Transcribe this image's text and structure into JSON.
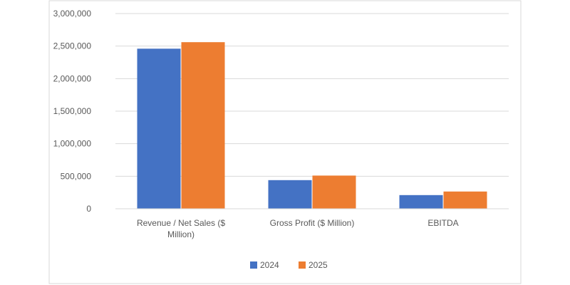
{
  "chart_data": {
    "type": "bar",
    "categories": [
      "Revenue / Net Sales ($ Million)",
      "Gross Profit ($ Million)",
      "EBITDA"
    ],
    "category_label_lines": [
      [
        "Revenue / Net Sales ($",
        "Million)"
      ],
      [
        "Gross Profit ($ Million)"
      ],
      [
        "EBITDA"
      ]
    ],
    "series": [
      {
        "name": "2024",
        "color": "#4472C4",
        "values": [
          2460000,
          440000,
          210000
        ]
      },
      {
        "name": "2025",
        "color": "#ED7D31",
        "values": [
          2560000,
          510000,
          265000
        ]
      }
    ],
    "ylim": [
      0,
      3000000
    ],
    "yticks": [
      0,
      500000,
      1000000,
      1500000,
      2000000,
      2500000,
      3000000
    ],
    "ytick_labels": [
      "0",
      "500,000",
      "1,000,000",
      "1,500,000",
      "2,000,000",
      "2,500,000",
      "3,000,000"
    ],
    "grid": true,
    "legend_position": "bottom",
    "title": "",
    "xlabel": "",
    "ylabel": ""
  }
}
